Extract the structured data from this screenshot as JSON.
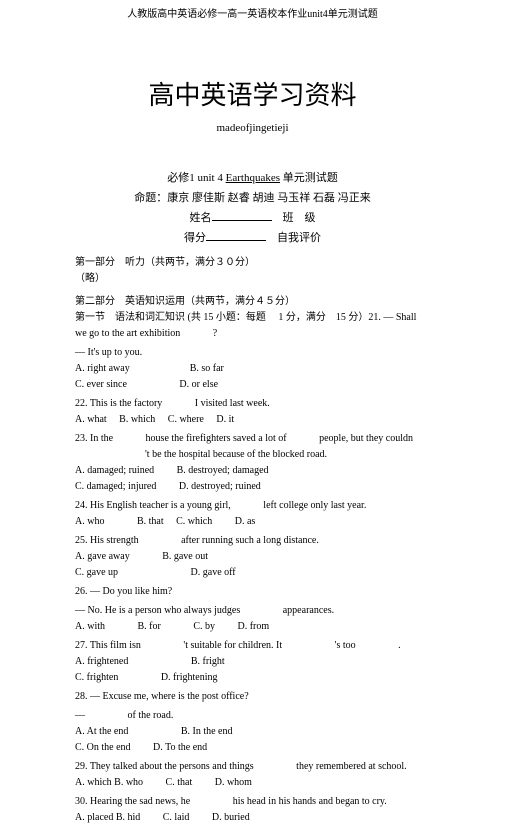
{
  "header": "人教版高中英语必修一高一英语校本作业unit4单元测试题",
  "title": "高中英语学习资料",
  "subtitle": "madeofjingetieji",
  "examTitle": {
    "prefix": "必修1 unit 4 ",
    "underlined": "Earthquakes",
    "suffix": " 单元测试题"
  },
  "authors": "命题：康京  廖佳斯  赵睿  胡迪  马玉祥  石磊  冯正来",
  "nameLine1": "姓名",
  "nameLine1b": "班　级",
  "nameLine2": "得分",
  "nameLine2b": "自我评价",
  "part1": "第一部分　听力（共两节，满分３０分）",
  "omitted": "（略）",
  "part2": "第二部分　英语知识运用（共两节，满分４５分）",
  "section1": "第一节　语法和词汇知识  (共 15 小题：每题 　1 分，满分　15 分）21. — Shall we go to the art exhibition 　　　?",
  "q21b": "— It's up to you.",
  "q21opts": "A. right away　　　　　　B. so far",
  "q21opts2": "C. ever since 　　　　　D. or else",
  "q22": "22. This is the factory 　　　I visited last week.",
  "q22opts": "A. what 　B. which 　C. where 　D. it",
  "q23": "23. In the 　　　house the firefighters saved a lot of 　　　people, but they couldn 　　　　　　　't be the hospital because of the blocked road.",
  "q23opts": "A. damaged; ruined 　　B. destroyed; damaged",
  "q23opts2": "C. damaged; injured 　　D. destroyed; ruined",
  "q24": "24. His English teacher is a young girl, 　　　left college only last year.",
  "q24opts": "A. who 　　　B. that 　C. which 　　D. as",
  "q25": "25. His strength 　　　　after running such a long distance.",
  "q25opts": "A. gave away 　　　B. gave out",
  "q25opts2": "C. gave up 　　　　　　　D. gave off",
  "q26": "26. — Do you like him?",
  "q26b": "— No. He is a person who always judges 　　　　appearances.",
  "q26opts": "A. with 　　　B. for 　　　C. by 　　D. from",
  "q27": "27. This film isn 　　　　't suitable for children. It 　　　　　's too 　　　　.",
  "q27opts": "A. frightened 　　　　　　B. fright",
  "q27opts2": "C. frighten 　　　　D. frightening",
  "q28": "28. — Excuse me, where is the post office?",
  "q28b": "— 　　　　of the road.",
  "q28opts": "A. At the end 　　　　　B. In the end",
  "q28opts2": "C. On the end 　　D. To the end",
  "q29": "29. They talked about the persons and things 　　　　they remembered at school.",
  "q29opts": "A. which B. who 　　C. that 　　D. whom",
  "q30": "30. Hearing the sad news, he 　　　　his head in his hands and began to cry.",
  "q30opts": "A. placed B. hid 　　C. laid 　　D. buried"
}
